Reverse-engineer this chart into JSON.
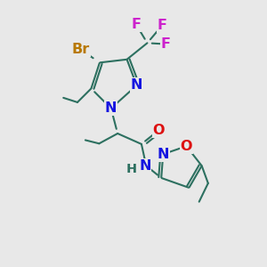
{
  "bg_color": "#e8e8e8",
  "bond_color": "#2d7060",
  "bond_lw": 1.5,
  "N_color": "#1414e0",
  "O_color": "#dd1111",
  "Br_color": "#b87800",
  "F_color": "#cc22cc",
  "C_color": "#2d7060",
  "font_size": 11.5,
  "xlim": [
    0,
    10
  ],
  "ylim": [
    0,
    10
  ]
}
